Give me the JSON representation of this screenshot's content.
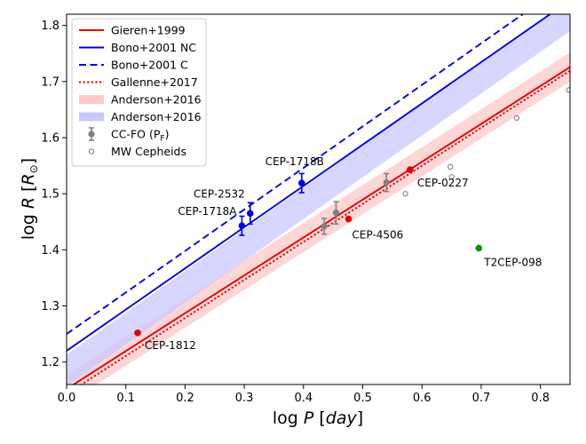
{
  "chart_data": {
    "type": "scatter",
    "xlabel": "log P [day]",
    "ylabel": "log R [R☉]",
    "xlim": [
      0.0,
      0.85
    ],
    "ylim": [
      1.16,
      1.82
    ],
    "xticks": [
      0.0,
      0.1,
      0.2,
      0.3,
      0.4,
      0.5,
      0.6,
      0.7,
      0.8
    ],
    "xtick_labels": [
      "0.0",
      "0.1",
      "0.2",
      "0.3",
      "0.4",
      "0.5",
      "0.6",
      "0.7",
      "0.8"
    ],
    "yticks": [
      1.2,
      1.3,
      1.4,
      1.5,
      1.6,
      1.7,
      1.8
    ],
    "ytick_labels": [
      "1.2",
      "1.3",
      "1.4",
      "1.5",
      "1.6",
      "1.7",
      "1.8"
    ],
    "relations": [
      {
        "name": "Gieren+1999",
        "intercept": 1.152,
        "slope": 0.675,
        "color": "#e00000",
        "style": "solid"
      },
      {
        "name": "Bono+2001 NC",
        "intercept": 1.22,
        "slope": 0.735,
        "color": "#0000e0",
        "style": "solid"
      },
      {
        "name": "Bono+2001 C",
        "intercept": 1.25,
        "slope": 0.74,
        "color": "#0000e0",
        "style": "dashed"
      },
      {
        "name": "Gallenne+2017",
        "intercept": 1.143,
        "slope": 0.678,
        "color": "#e00000",
        "style": "dotted"
      }
    ],
    "bands": [
      {
        "name": "Anderson+2016",
        "intercept": 1.152,
        "slope": 0.675,
        "halfwidth": 0.026,
        "color": "#ffc8c8"
      },
      {
        "name": "Anderson+2016",
        "intercept": 1.185,
        "slope": 0.745,
        "halfwidth": 0.028,
        "color": "#c8c8ff"
      }
    ],
    "cc_fo": [
      {
        "x": 0.435,
        "y": 1.442,
        "err": 0.014
      },
      {
        "x": 0.455,
        "y": 1.466,
        "err": 0.02
      },
      {
        "x": 0.54,
        "y": 1.52,
        "err": 0.016
      }
    ],
    "mw_cepheids": [
      {
        "x": 0.572,
        "y": 1.5
      },
      {
        "x": 0.648,
        "y": 1.548
      },
      {
        "x": 0.65,
        "y": 1.53
      },
      {
        "x": 0.76,
        "y": 1.635
      },
      {
        "x": 0.848,
        "y": 1.685
      }
    ],
    "named_stars": [
      {
        "name": "CEP-1812",
        "x": 0.12,
        "y": 1.252,
        "color": "#e00000",
        "err": 0
      },
      {
        "name": "CEP-4506",
        "x": 0.476,
        "y": 1.455,
        "color": "#e00000",
        "err": 0
      },
      {
        "name": "CEP-0227",
        "x": 0.58,
        "y": 1.543,
        "color": "#e00000",
        "err": 0
      },
      {
        "name": "T2CEP-098",
        "x": 0.696,
        "y": 1.403,
        "color": "#109010",
        "err": 0
      },
      {
        "name": "CEP-1718A",
        "x": 0.296,
        "y": 1.443,
        "color": "#0000e0",
        "err": 0.017
      },
      {
        "name": "CEP-2532",
        "x": 0.31,
        "y": 1.465,
        "color": "#0000e0",
        "err": 0.019
      },
      {
        "name": "CEP-1718B",
        "x": 0.397,
        "y": 1.519,
        "color": "#0000e0",
        "err": 0.017
      }
    ],
    "legend": {
      "position": "top-left",
      "entries": [
        {
          "label": "Gieren+1999",
          "kind": "line",
          "color": "#e00000",
          "style": "solid"
        },
        {
          "label": "Bono+2001 NC",
          "kind": "line",
          "color": "#0000e0",
          "style": "solid"
        },
        {
          "label": "Bono+2001 C",
          "kind": "line",
          "color": "#0000e0",
          "style": "dashed"
        },
        {
          "label": "Gallenne+2017",
          "kind": "line",
          "color": "#e00000",
          "style": "dotted"
        },
        {
          "label": "Anderson+2016",
          "kind": "band",
          "color": "#ffc8c8"
        },
        {
          "label": "Anderson+2016",
          "kind": "band",
          "color": "#c8c8ff"
        },
        {
          "label": "CC-FO (P",
          "sub": "F",
          "tail": ")",
          "kind": "errpoint",
          "color": "#808080"
        },
        {
          "label": "MW Cepheids",
          "kind": "open",
          "color": "#808080"
        }
      ]
    }
  }
}
